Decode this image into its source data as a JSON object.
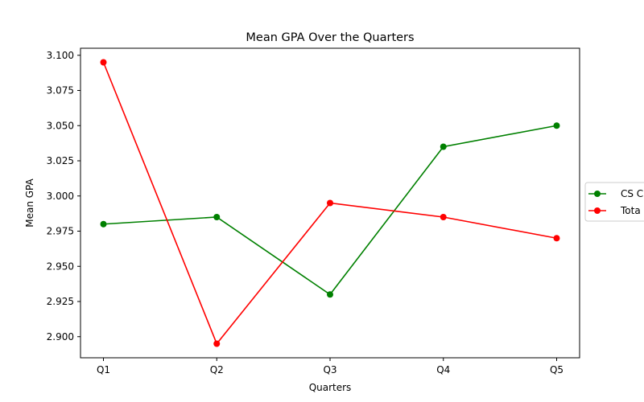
{
  "chart_data": {
    "type": "line",
    "title": "Mean GPA Over the Quarters",
    "xlabel": "Quarters",
    "ylabel": "Mean GPA",
    "categories": [
      "Q1",
      "Q2",
      "Q3",
      "Q4",
      "Q5"
    ],
    "ylim": [
      2.885,
      3.105
    ],
    "yticks": [
      "2.900",
      "2.925",
      "2.950",
      "2.975",
      "3.000",
      "3.025",
      "3.050",
      "3.075",
      "3.100"
    ],
    "grid": false,
    "legend_position": "right, outside plot (partially cut off)",
    "series": [
      {
        "name": "CS C",
        "color": "#008000",
        "values": [
          2.98,
          2.985,
          2.93,
          3.035,
          3.05
        ]
      },
      {
        "name": "Tota",
        "color": "#ff0000",
        "values": [
          3.095,
          2.895,
          2.995,
          2.985,
          2.97
        ]
      }
    ]
  }
}
